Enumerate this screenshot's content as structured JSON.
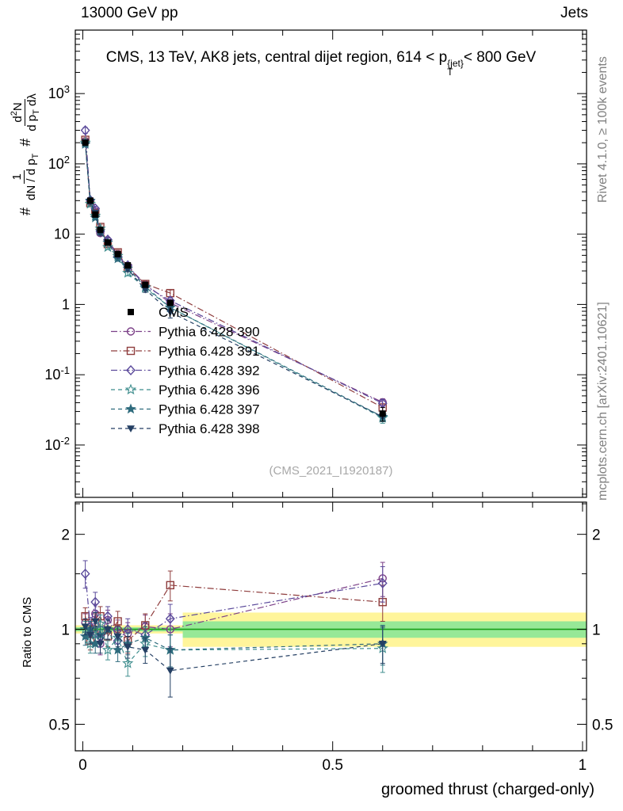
{
  "header": {
    "left": "13000 GeV pp",
    "right": "Jets"
  },
  "title": {
    "prefix": "CMS, 13 TeV, AK8 jets, central dijet region, 614 < p",
    "sup": "{jet}",
    "sub": "T",
    "suffix": "< 800 GeV"
  },
  "right_margin": {
    "top": "Rivet 4.1.0, ≥ 100k events",
    "bottom": "mcplots.cern.ch [arXiv:2401.10621]"
  },
  "watermark": "(CMS_2021_I1920187)",
  "axes": {
    "xlabel": "groomed thrust (charged-only)",
    "ylabel_ratio": "Ratio to CMS",
    "ylabel_main": {
      "hash1": "#",
      "num1": "1",
      "den1": "dN / d p",
      "den1sub": "T",
      "hash2": "#",
      "num2a": "d",
      "num2sup": "2",
      "num2b": "N",
      "den2a": "d p",
      "den2asub": "T",
      "den2b": " dλ"
    }
  },
  "chart_data": {
    "type": "line",
    "title": "CMS, 13 TeV, AK8 jets, central dijet region, 614 < p_T^{jet} < 800 GeV",
    "xlabel": "groomed thrust (charged-only)",
    "ylabel_main": "1/(dN/dp_T) d2N/(dp_T dlambda)",
    "ylabel_ratio": "Ratio to CMS",
    "x_range": [
      -0.015,
      1.008
    ],
    "main_ylog_range": [
      0.0018,
      8000
    ],
    "ratio_ylog_range": [
      0.412,
      2.53
    ],
    "x_ticks": {
      "major": [
        0,
        0.5,
        1
      ],
      "labels": [
        "0",
        "0.5",
        "1"
      ],
      "minor_step": 0.1
    },
    "main_y_ticks_exp": [
      -2,
      -1,
      0,
      1,
      2,
      3
    ],
    "ratio_ticks": {
      "major": [
        0.5,
        1,
        2
      ],
      "labels": [
        "0.5",
        "1",
        "2"
      ],
      "minor": [
        0.6,
        0.7,
        0.8,
        0.9,
        1.5,
        2.5
      ]
    },
    "x": [
      0.005,
      0.015,
      0.025,
      0.035,
      0.05,
      0.07,
      0.09,
      0.125,
      0.175,
      0.6
    ],
    "cms": {
      "label": "CMS",
      "color": "#000000",
      "marker": "square-filled",
      "values": [
        200,
        30,
        19,
        11.5,
        7.6,
        5.2,
        3.6,
        1.9,
        1.05,
        0.028
      ],
      "err_frac": [
        0.03,
        0.03,
        0.03,
        0.035,
        0.04,
        0.045,
        0.05,
        0.06,
        0.08,
        0.22
      ]
    },
    "series": [
      {
        "label": "Pythia 6.428 390",
        "color": "#7b3f87",
        "marker": "circle-open",
        "dash": "dashdot",
        "ratio": [
          1.05,
          0.97,
          1.12,
          0.9,
          1.07,
          1.0,
          0.97,
          1.02,
          1.0,
          1.45
        ],
        "ratio_err": [
          0.07,
          0.06,
          0.08,
          0.07,
          0.08,
          0.07,
          0.08,
          0.09,
          0.12,
          0.18
        ]
      },
      {
        "label": "Pythia 6.428 391",
        "color": "#8f3d3d",
        "marker": "square-open",
        "dash": "dashdot",
        "ratio": [
          1.1,
          0.92,
          1.05,
          1.1,
          0.95,
          1.06,
          0.92,
          1.03,
          1.38,
          1.22
        ],
        "ratio_err": [
          0.07,
          0.06,
          0.07,
          0.08,
          0.07,
          0.08,
          0.08,
          0.09,
          0.15,
          0.16
        ]
      },
      {
        "label": "Pythia 6.428 392",
        "color": "#5b4a9b",
        "marker": "diamond-open",
        "dash": "dashdot",
        "ratio": [
          1.5,
          1.02,
          1.22,
          0.95,
          1.1,
          0.92,
          1.0,
          0.96,
          1.08,
          1.4
        ],
        "ratio_err": [
          0.15,
          0.07,
          0.09,
          0.07,
          0.08,
          0.07,
          0.08,
          0.09,
          0.12,
          0.18
        ]
      },
      {
        "label": "Pythia 6.428 396",
        "color": "#3f8e8e",
        "marker": "star-open",
        "dash": "dashed",
        "ratio": [
          1.0,
          0.9,
          0.96,
          1.04,
          0.86,
          0.94,
          0.78,
          0.9,
          0.86,
          0.87
        ],
        "ratio_err": [
          0.06,
          0.06,
          0.06,
          0.07,
          0.06,
          0.07,
          0.07,
          0.08,
          0.1,
          0.14
        ]
      },
      {
        "label": "Pythia 6.428 397",
        "color": "#2e6b7d",
        "marker": "star-filled",
        "dash": "dashed",
        "ratio": [
          0.95,
          1.0,
          0.9,
          0.96,
          1.0,
          0.86,
          0.9,
          0.94,
          0.86,
          0.9
        ],
        "ratio_err": [
          0.06,
          0.06,
          0.06,
          0.06,
          0.07,
          0.07,
          0.07,
          0.08,
          0.1,
          0.13
        ]
      },
      {
        "label": "Pythia 6.428 398",
        "color": "#243f63",
        "marker": "triangle-down-filled",
        "dash": "dashed",
        "ratio": [
          1.02,
          0.96,
          1.06,
          0.9,
          1.0,
          0.95,
          0.88,
          0.86,
          0.74,
          0.9
        ],
        "ratio_err": [
          0.06,
          0.06,
          0.07,
          0.06,
          0.07,
          0.07,
          0.07,
          0.08,
          0.13,
          0.12
        ]
      }
    ],
    "bands": [
      {
        "x0": -0.015,
        "x1": 0.2,
        "yellow": [
          0.97,
          1.03
        ],
        "green": [
          0.985,
          1.015
        ]
      },
      {
        "x0": 0.2,
        "x1": 1.008,
        "yellow": [
          0.88,
          1.13
        ],
        "green": [
          0.94,
          1.06
        ]
      }
    ],
    "band_colors": {
      "yellow": "#fff59b",
      "green": "#97e897",
      "centerline": "#18a018"
    },
    "legend_position": "center-left"
  }
}
